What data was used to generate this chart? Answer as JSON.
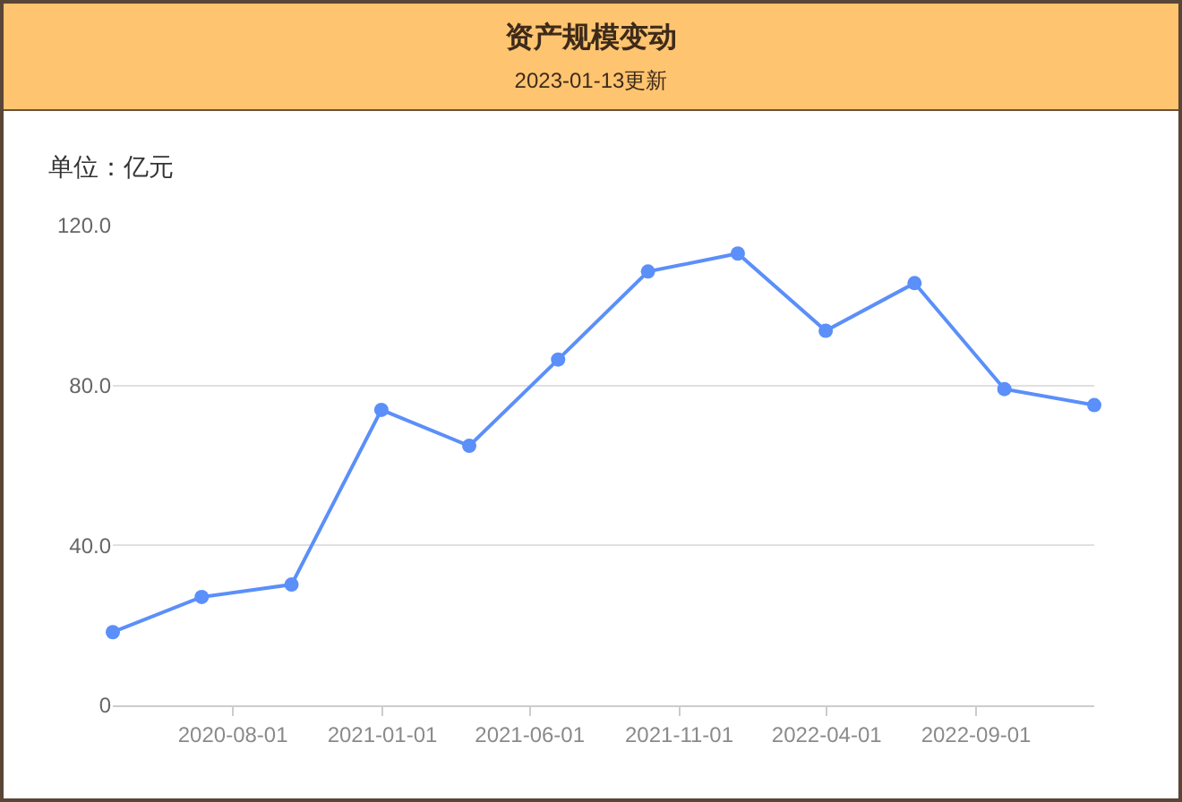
{
  "chart_data": {
    "type": "line",
    "title": "资产规模变动",
    "subtitle": "2023-01-13更新",
    "ylabel": "单位：亿元",
    "x": [
      "2020-03-31",
      "2020-06-30",
      "2020-09-30",
      "2020-12-31",
      "2021-03-31",
      "2021-06-30",
      "2021-09-30",
      "2021-12-31",
      "2022-03-31",
      "2022-06-30",
      "2022-09-30",
      "2022-12-31"
    ],
    "series": [
      {
        "color": "#5b8ff9",
        "values": [
          18.3,
          27.1,
          30.2,
          73.9,
          64.9,
          86.5,
          108.5,
          113.0,
          93.7,
          105.6,
          79.1,
          75.1
        ]
      }
    ],
    "xlim": [
      "2020-03-31",
      "2022-12-31"
    ],
    "xticks": [
      "2020-08-01",
      "2021-01-01",
      "2021-06-01",
      "2021-11-01",
      "2022-04-01",
      "2022-09-01"
    ],
    "ylim": [
      0,
      120
    ],
    "yticks": [
      0,
      {
        "value": 40,
        "label": "40.0"
      },
      {
        "value": 80,
        "label": "80.0"
      },
      {
        "value": 120,
        "label": "120.0"
      }
    ],
    "grid": "y",
    "marker": "circle"
  }
}
